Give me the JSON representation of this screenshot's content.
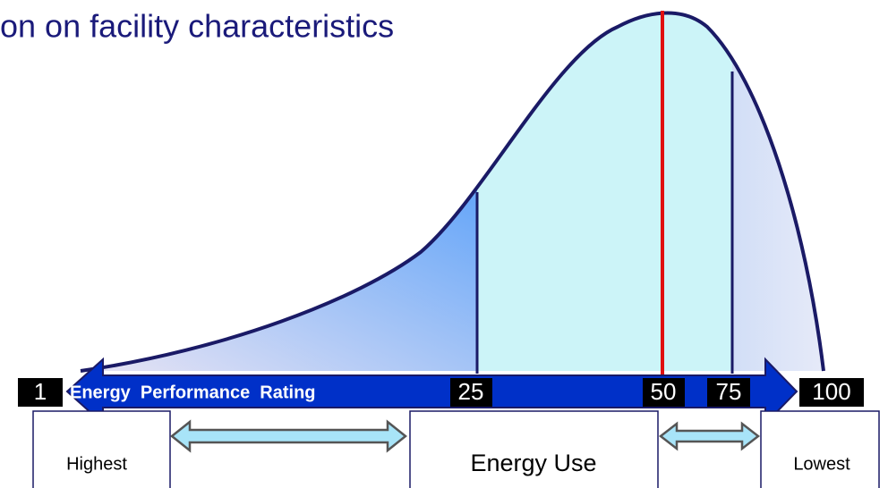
{
  "title": "on on facility characteristics",
  "scale": {
    "label": "Energy  Performance  Rating",
    "marks": [
      "1",
      "25",
      "50",
      "75",
      "100"
    ]
  },
  "boxes": [
    "Highest",
    "Energy Use",
    "Lowest"
  ]
}
